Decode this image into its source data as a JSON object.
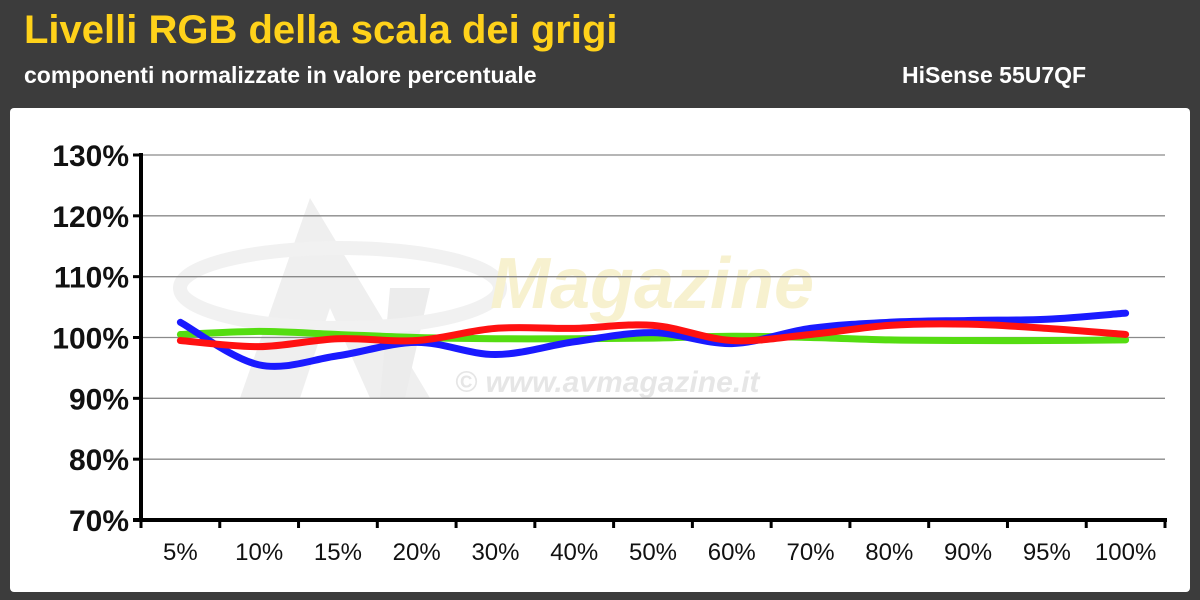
{
  "header": {
    "title": "Livelli RGB della scala dei grigi",
    "subtitle": "componenti normalizzate in valore percentuale",
    "model": "HiSense 55U7QF"
  },
  "watermark": {
    "brand": "Magazine",
    "url": "© www.avmagazine.it"
  },
  "colors": {
    "header_bg": "#3c3c3c",
    "title": "#ffd21a",
    "subtitle": "#ffffff",
    "blue_series": "#1a1aff",
    "green_series": "#55dd11",
    "red_series": "#ff1111"
  },
  "chart_data": {
    "type": "line",
    "categories": [
      "5%",
      "10%",
      "15%",
      "20%",
      "30%",
      "40%",
      "50%",
      "60%",
      "70%",
      "80%",
      "90%",
      "95%",
      "100%"
    ],
    "ylim": [
      70,
      130
    ],
    "yticks": [
      "70%",
      "80%",
      "90%",
      "100%",
      "110%",
      "120%",
      "130%"
    ],
    "grid": true,
    "title": "",
    "xlabel": "",
    "ylabel": "",
    "series": [
      {
        "color": "#55dd11",
        "values": [
          100.5,
          101.0,
          100.5,
          100.0,
          99.8,
          99.8,
          99.9,
          100.2,
          100.0,
          99.6,
          99.5,
          99.5,
          99.6
        ]
      },
      {
        "color": "#1a1aff",
        "values": [
          102.5,
          95.5,
          97.0,
          99.2,
          97.2,
          99.3,
          100.8,
          99.0,
          101.5,
          102.5,
          102.8,
          103.0,
          104.0
        ]
      },
      {
        "color": "#ff1111",
        "values": [
          99.5,
          98.5,
          99.8,
          99.5,
          101.5,
          101.5,
          102.0,
          99.5,
          100.5,
          102.0,
          102.2,
          101.5,
          100.5
        ]
      }
    ]
  }
}
